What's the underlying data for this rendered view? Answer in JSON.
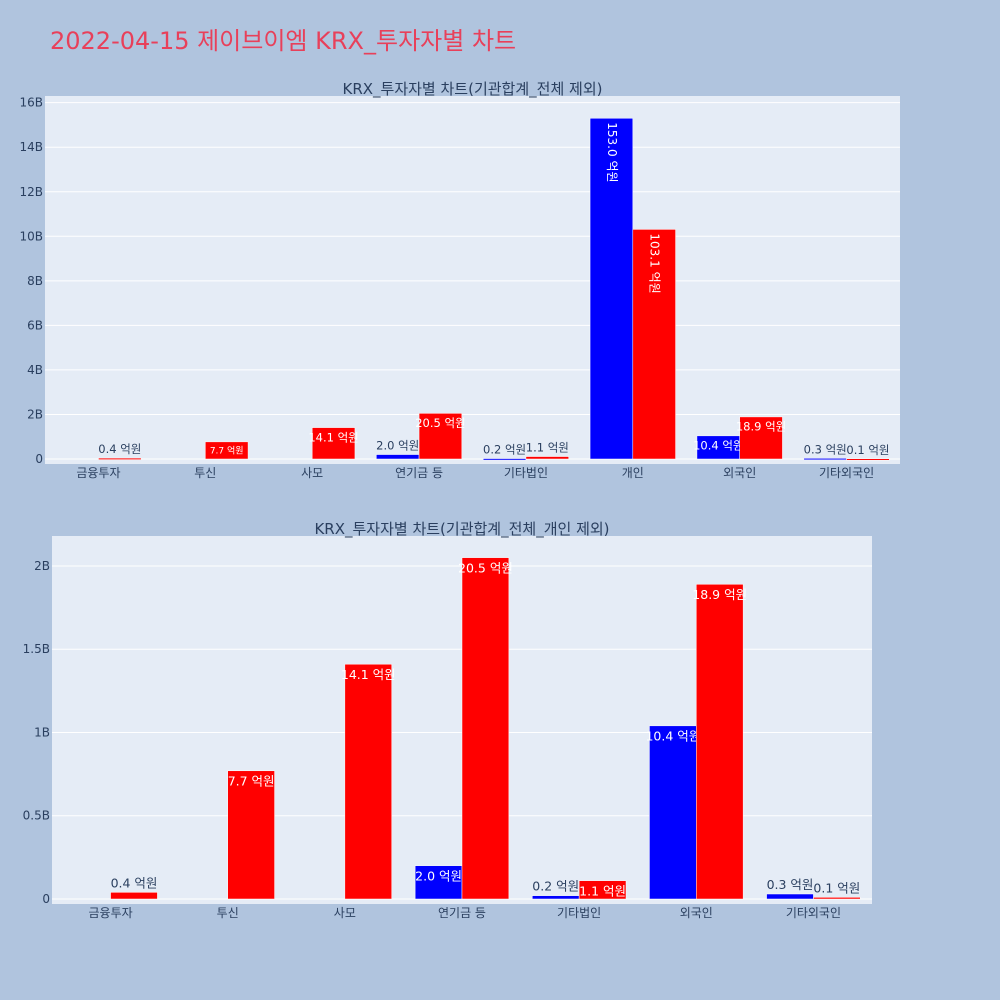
{
  "page_title": "2022-04-15 제이브이엠 KRX_투자자별 차트",
  "colors": {
    "title": "#e8405a",
    "series_a": "#0000ff",
    "series_b": "#ff0000",
    "plot_bg": "#e5ecf6",
    "page_bg": "#b0c4de"
  },
  "chart_data": [
    {
      "type": "bar",
      "title": "KRX_투자자별 차트(기관합계_전체 제외)",
      "categories": [
        "금융투자",
        "투신",
        "사모",
        "연기금 등",
        "기타법인",
        "개인",
        "외국인",
        "기타외국인"
      ],
      "ylim": [
        0,
        16.3
      ],
      "yticks": [
        0,
        2,
        4,
        6,
        8,
        10,
        12,
        14,
        16
      ],
      "ytick_labels": [
        "0",
        "2B",
        "4B",
        "6B",
        "8B",
        "10B",
        "12B",
        "14B",
        "16B"
      ],
      "series": [
        {
          "values": [
            0,
            0,
            0,
            0.2,
            0.02,
            15.3,
            1.04,
            0.03
          ],
          "labels": [
            "",
            "",
            "",
            "2.0 억원",
            "0.2 억원",
            "153.0 억원",
            "10.4 억원",
            "0.3 억원"
          ]
        },
        {
          "values": [
            0.04,
            0.77,
            1.41,
            2.05,
            0.11,
            10.31,
            1.89,
            0.01
          ],
          "labels": [
            "0.4 억원",
            "7.7 억원",
            "14.1 억원",
            "20.5 억원",
            "1.1 억원",
            "103.1 억원",
            "18.9 억원",
            "0.1 억원"
          ]
        }
      ]
    },
    {
      "type": "bar",
      "title": "KRX_투자자별 차트(기관합계_전체_개인 제외)",
      "categories": [
        "금융투자",
        "투신",
        "사모",
        "연기금 등",
        "기타법인",
        "외국인",
        "기타외국인"
      ],
      "ylim": [
        0,
        2.18
      ],
      "yticks": [
        0,
        0.5,
        1,
        1.5,
        2
      ],
      "ytick_labels": [
        "0",
        "0.5B",
        "1B",
        "1.5B",
        "2B"
      ],
      "series": [
        {
          "values": [
            0,
            0,
            0,
            0.2,
            0.02,
            1.04,
            0.03
          ],
          "labels": [
            "",
            "",
            "",
            "2.0 억원",
            "0.2 억원",
            "10.4 억원",
            "0.3 억원"
          ]
        },
        {
          "values": [
            0.04,
            0.77,
            1.41,
            2.05,
            0.11,
            1.89,
            0.01
          ],
          "labels": [
            "0.4 억원",
            "7.7 억원",
            "14.1 억원",
            "20.5 억원",
            "1.1 억원",
            "18.9 억원",
            "0.1 억원"
          ]
        }
      ]
    }
  ]
}
